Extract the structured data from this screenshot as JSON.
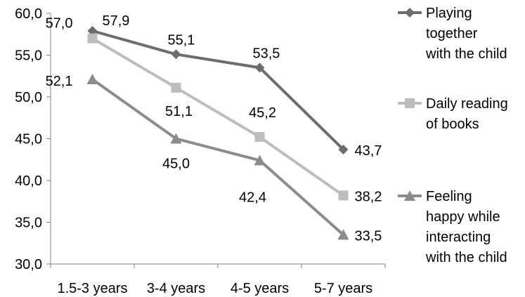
{
  "chart_data": {
    "type": "line",
    "categories": [
      "1.5-3 years",
      "3-4 years",
      "4-5 years",
      "5-7 years"
    ],
    "ylim": [
      30,
      60
    ],
    "yticks": [
      "30,0",
      "35,0",
      "40,0",
      "45,0",
      "50,0",
      "55,0",
      "60,0"
    ],
    "grid": false,
    "legend_position": "right",
    "series": [
      {
        "name": "Playing together with the child",
        "legend_lines": [
          "Playing",
          "together",
          "with the child"
        ],
        "marker": "diamond",
        "color": "#6d6d6d",
        "values": [
          57.9,
          55.1,
          53.5,
          43.7
        ],
        "labels": [
          "57,9",
          "55,1",
          "53,5",
          "43,7"
        ]
      },
      {
        "name": "Daily reading of books",
        "legend_lines": [
          "Daily reading",
          "of books"
        ],
        "marker": "square",
        "color": "#bdbdbd",
        "values": [
          57.0,
          51.1,
          45.2,
          38.2
        ],
        "labels": [
          "57,0",
          "51,1",
          "45,2",
          "38,2"
        ]
      },
      {
        "name": "Feeling happy while interacting with the child",
        "legend_lines": [
          "Feeling",
          "happy while",
          "interacting",
          "with the child"
        ],
        "marker": "triangle",
        "color": "#8c8c8c",
        "values": [
          52.1,
          45.0,
          42.4,
          33.5
        ],
        "labels": [
          "52,1",
          "45,0",
          "42,4",
          "33,5"
        ]
      }
    ]
  }
}
